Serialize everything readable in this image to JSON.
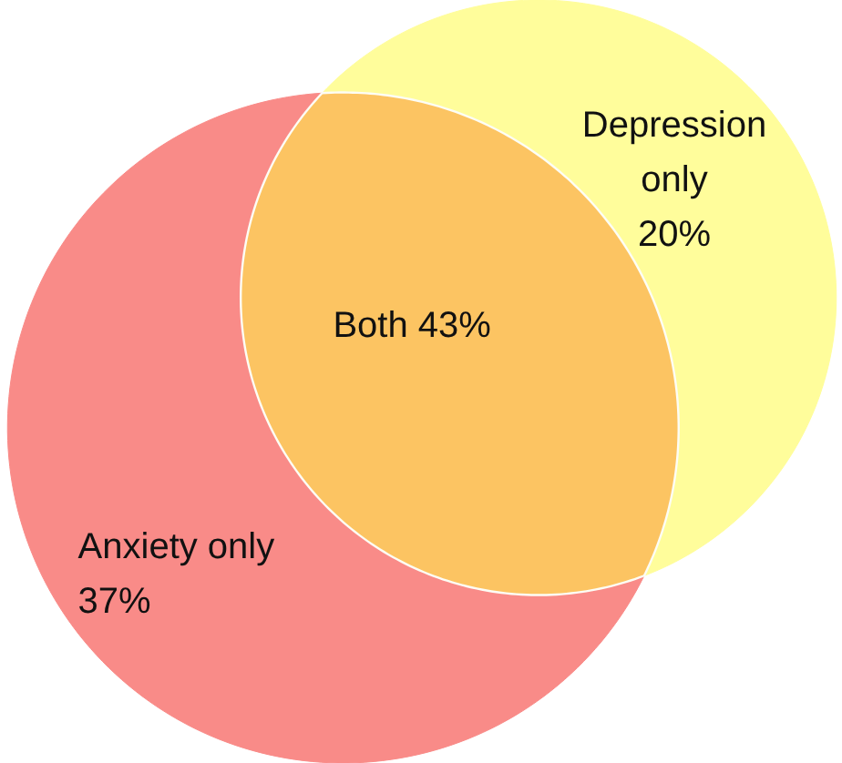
{
  "chart_data": {
    "type": "other",
    "categories": [
      "Anxiety only",
      "Both",
      "Depression only"
    ],
    "values": [
      37,
      43,
      20
    ],
    "value_labels": [
      "37%",
      "43%",
      "20%"
    ],
    "colors": [
      "#f98b88",
      "#fcc462",
      "#fffd9b"
    ]
  }
}
